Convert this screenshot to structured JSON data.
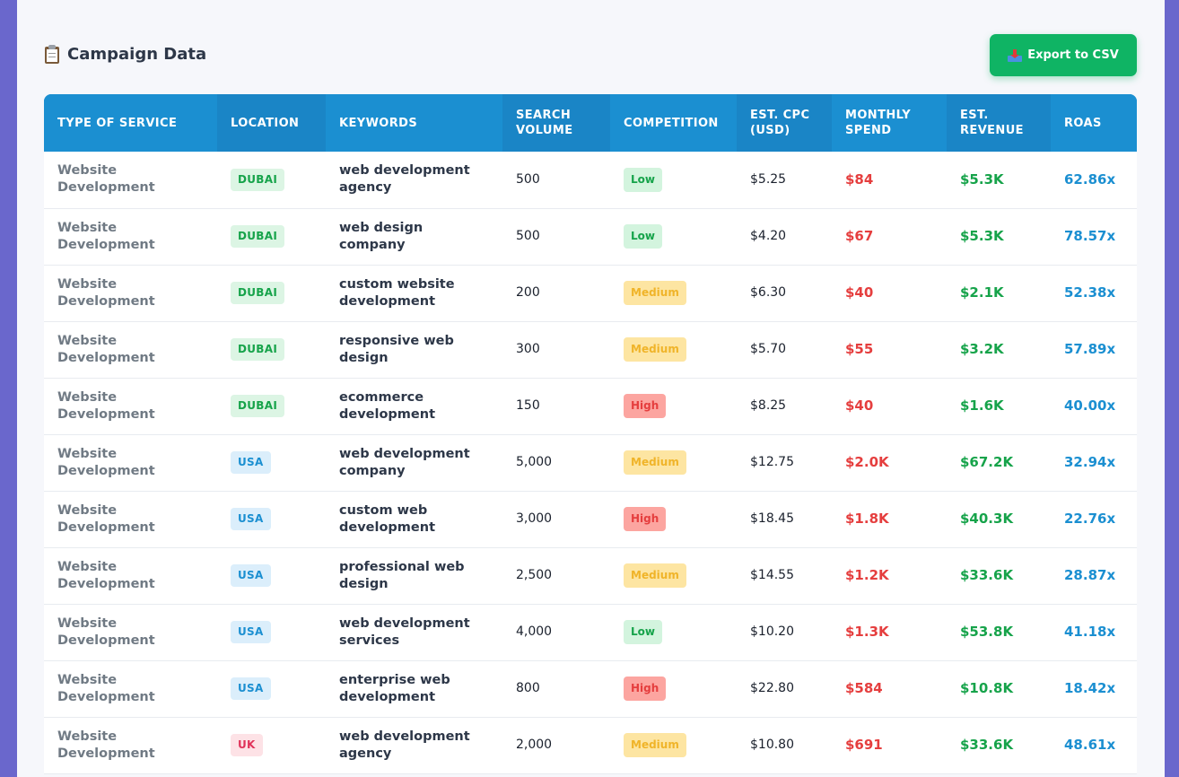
{
  "section": {
    "title": "Campaign Data",
    "export_label": "Export to CSV"
  },
  "icons": {
    "title_icon": "clipboard-icon",
    "export_icon": "inbox-tray-icon"
  },
  "colors": {
    "header_bg": "#1b8fd1",
    "export_bg": "#0fb464",
    "spend": "#e53e3e",
    "revenue": "#16a34a",
    "roas": "#1b8fd1"
  },
  "table": {
    "columns": [
      "TYPE OF SERVICE",
      "LOCATION",
      "KEYWORDS",
      "SEARCH VOLUME",
      "COMPETITION",
      "EST. CPC (USD)",
      "MONTHLY SPEND",
      "EST. REVENUE",
      "ROAS"
    ],
    "rows": [
      {
        "service": "Website Development",
        "location": "DUBAI",
        "keyword": "web development agency",
        "volume": "500",
        "competition": "Low",
        "cpc": "$5.25",
        "spend": "$84",
        "revenue": "$5.3K",
        "roas": "62.86x"
      },
      {
        "service": "Website Development",
        "location": "DUBAI",
        "keyword": "web design company",
        "volume": "500",
        "competition": "Low",
        "cpc": "$4.20",
        "spend": "$67",
        "revenue": "$5.3K",
        "roas": "78.57x"
      },
      {
        "service": "Website Development",
        "location": "DUBAI",
        "keyword": "custom website development",
        "volume": "200",
        "competition": "Medium",
        "cpc": "$6.30",
        "spend": "$40",
        "revenue": "$2.1K",
        "roas": "52.38x"
      },
      {
        "service": "Website Development",
        "location": "DUBAI",
        "keyword": "responsive web design",
        "volume": "300",
        "competition": "Medium",
        "cpc": "$5.70",
        "spend": "$55",
        "revenue": "$3.2K",
        "roas": "57.89x"
      },
      {
        "service": "Website Development",
        "location": "DUBAI",
        "keyword": "ecommerce development",
        "volume": "150",
        "competition": "High",
        "cpc": "$8.25",
        "spend": "$40",
        "revenue": "$1.6K",
        "roas": "40.00x"
      },
      {
        "service": "Website Development",
        "location": "USA",
        "keyword": "web development company",
        "volume": "5,000",
        "competition": "Medium",
        "cpc": "$12.75",
        "spend": "$2.0K",
        "revenue": "$67.2K",
        "roas": "32.94x"
      },
      {
        "service": "Website Development",
        "location": "USA",
        "keyword": "custom web development",
        "volume": "3,000",
        "competition": "High",
        "cpc": "$18.45",
        "spend": "$1.8K",
        "revenue": "$40.3K",
        "roas": "22.76x"
      },
      {
        "service": "Website Development",
        "location": "USA",
        "keyword": "professional web design",
        "volume": "2,500",
        "competition": "Medium",
        "cpc": "$14.55",
        "spend": "$1.2K",
        "revenue": "$33.6K",
        "roas": "28.87x"
      },
      {
        "service": "Website Development",
        "location": "USA",
        "keyword": "web development services",
        "volume": "4,000",
        "competition": "Low",
        "cpc": "$10.20",
        "spend": "$1.3K",
        "revenue": "$53.8K",
        "roas": "41.18x"
      },
      {
        "service": "Website Development",
        "location": "USA",
        "keyword": "enterprise web development",
        "volume": "800",
        "competition": "High",
        "cpc": "$22.80",
        "spend": "$584",
        "revenue": "$10.8K",
        "roas": "18.42x"
      },
      {
        "service": "Website Development",
        "location": "UK",
        "keyword": "web development agency",
        "volume": "2,000",
        "competition": "Medium",
        "cpc": "$10.80",
        "spend": "$691",
        "revenue": "$33.6K",
        "roas": "48.61x"
      }
    ]
  }
}
